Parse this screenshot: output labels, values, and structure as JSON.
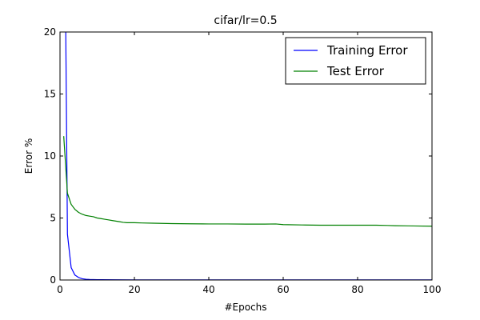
{
  "chart_data": {
    "type": "line",
    "title": "cifar/lr=0.5",
    "xlabel": "#Epochs",
    "ylabel": "Error %",
    "xlim": [
      0,
      100
    ],
    "ylim": [
      0,
      20
    ],
    "xticks": [
      0,
      20,
      40,
      60,
      80,
      100
    ],
    "yticks": [
      0,
      5,
      10,
      15,
      20
    ],
    "grid": false,
    "legend_position": "top-right",
    "series": [
      {
        "name": "Training Error",
        "color": "#0000ff",
        "points": [
          [
            1,
            40
          ],
          [
            2,
            3.7
          ],
          [
            3,
            1.0
          ],
          [
            4,
            0.4
          ],
          [
            5,
            0.2
          ],
          [
            6,
            0.1
          ],
          [
            7,
            0.06
          ],
          [
            8,
            0.04
          ],
          [
            10,
            0.03
          ],
          [
            15,
            0.02
          ],
          [
            20,
            0.01
          ],
          [
            30,
            0.01
          ],
          [
            40,
            0.01
          ],
          [
            60,
            0.01
          ],
          [
            80,
            0.01
          ],
          [
            100,
            0.01
          ]
        ]
      },
      {
        "name": "Test Error",
        "color": "#008000",
        "points": [
          [
            1,
            11.6
          ],
          [
            2,
            7.0
          ],
          [
            3,
            6.1
          ],
          [
            4,
            5.7
          ],
          [
            5,
            5.45
          ],
          [
            6,
            5.3
          ],
          [
            7,
            5.2
          ],
          [
            8,
            5.15
          ],
          [
            9,
            5.1
          ],
          [
            10,
            5.0
          ],
          [
            11,
            4.95
          ],
          [
            12,
            4.9
          ],
          [
            13,
            4.85
          ],
          [
            14,
            4.8
          ],
          [
            15,
            4.75
          ],
          [
            16,
            4.7
          ],
          [
            17,
            4.65
          ],
          [
            18,
            4.62
          ],
          [
            20,
            4.62
          ],
          [
            22,
            4.6
          ],
          [
            25,
            4.58
          ],
          [
            30,
            4.55
          ],
          [
            35,
            4.53
          ],
          [
            40,
            4.52
          ],
          [
            45,
            4.52
          ],
          [
            50,
            4.51
          ],
          [
            55,
            4.51
          ],
          [
            58,
            4.52
          ],
          [
            60,
            4.47
          ],
          [
            65,
            4.44
          ],
          [
            70,
            4.42
          ],
          [
            75,
            4.42
          ],
          [
            80,
            4.42
          ],
          [
            85,
            4.42
          ],
          [
            88,
            4.4
          ],
          [
            90,
            4.38
          ],
          [
            95,
            4.36
          ],
          [
            100,
            4.34
          ]
        ]
      }
    ]
  }
}
